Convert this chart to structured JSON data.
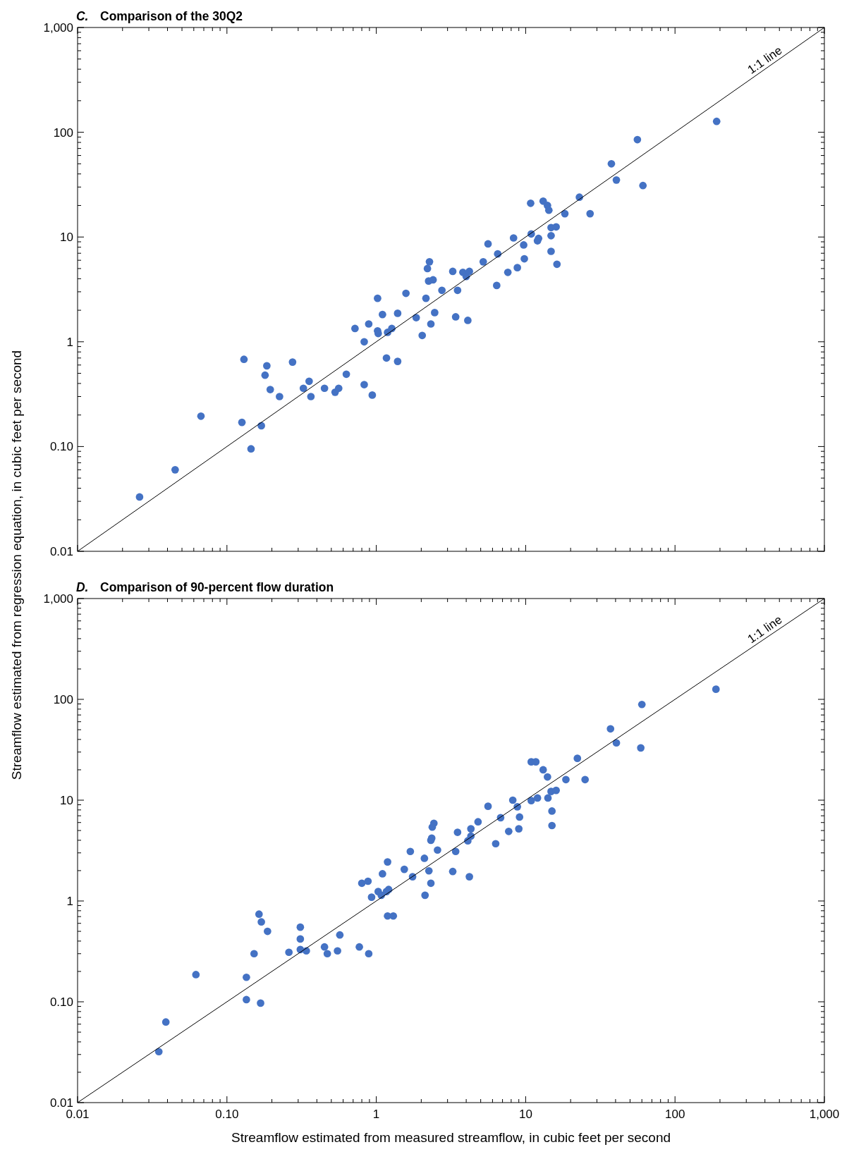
{
  "chart_data": [
    {
      "type": "scatter",
      "title": "C. Comparison of the 30Q2",
      "ylabel": "Streamflow estimated from regression equation, in cubic feet per second",
      "log": "xy",
      "grid": false,
      "tick_labels": "y",
      "xlim": [
        0.01,
        1000
      ],
      "ylim": [
        0.01,
        1000
      ],
      "xticks": [
        0.01,
        0.1,
        1,
        10,
        100,
        1000
      ],
      "yticks": [
        {
          "value": 0.01,
          "label": "0.01"
        },
        {
          "value": 0.1,
          "label": "0.10"
        },
        1,
        10,
        100,
        {
          "value": 1000,
          "label": "1,000"
        }
      ],
      "annotations": [
        "1:1 line"
      ],
      "series": [
        {
          "color": "#4472c4",
          "marker": "circle",
          "x": [
            0.026,
            0.045,
            0.067,
            0.126,
            0.13,
            0.145,
            0.17,
            0.185,
            0.18,
            0.195,
            0.225,
            0.275,
            0.325,
            0.355,
            0.365,
            0.45,
            0.53,
            0.56,
            0.63,
            0.83,
            0.72,
            0.83,
            0.89,
            0.94,
            1.02,
            1.02,
            1.03,
            1.1,
            1.17,
            1.19,
            1.27,
            1.39,
            1.39,
            1.58,
            1.85,
            2.03,
            2.15,
            2.2,
            2.27,
            2.24,
            2.4,
            2.32,
            2.46,
            2.75,
            3.25,
            3.4,
            3.5,
            3.8,
            4.0,
            4.2,
            4.1,
            5.2,
            5.6,
            6.5,
            6.4,
            7.6,
            8.3,
            8.8,
            9.7,
            9.8,
            10.8,
            10.9,
            12.0,
            12.2,
            13.1,
            14.0,
            14.3,
            14.8,
            14.8,
            14.8,
            16,
            16.2,
            18.3,
            22.9,
            27,
            37.5,
            40.5,
            56,
            61,
            190
          ],
          "values": [
            0.033,
            0.06,
            0.195,
            0.17,
            0.68,
            0.095,
            0.158,
            0.59,
            0.48,
            0.35,
            0.3,
            0.64,
            0.36,
            0.42,
            0.3,
            0.36,
            0.33,
            0.36,
            0.49,
            0.39,
            1.34,
            1.0,
            1.48,
            0.31,
            2.6,
            1.27,
            1.2,
            1.82,
            0.7,
            1.23,
            1.34,
            1.87,
            0.65,
            2.9,
            1.7,
            1.15,
            2.6,
            5.0,
            5.8,
            3.8,
            3.9,
            1.48,
            1.9,
            3.1,
            4.7,
            1.73,
            3.1,
            4.6,
            4.2,
            4.7,
            1.6,
            5.8,
            8.6,
            6.9,
            3.45,
            4.6,
            9.8,
            5.1,
            8.4,
            6.2,
            21,
            10.7,
            9.2,
            9.7,
            22,
            20,
            18,
            12.3,
            10.3,
            7.3,
            12.5,
            5.5,
            16.7,
            24,
            16.7,
            50,
            35,
            85,
            31,
            127
          ]
        },
        {
          "type": "line",
          "color": "#000000",
          "x": [
            0.01,
            1000
          ],
          "values": [
            0.01,
            1000
          ]
        }
      ]
    },
    {
      "type": "scatter",
      "title": "D. Comparison of 90-percent flow duration",
      "xlabel": "Streamflow estimated from measured streamflow, in cubic feet per second",
      "log": "xy",
      "grid": false,
      "xlim": [
        0.01,
        1000
      ],
      "ylim": [
        0.01,
        1000
      ],
      "xticks": [
        {
          "value": 0.01,
          "label": "0.01"
        },
        {
          "value": 0.1,
          "label": "0.10"
        },
        1,
        10,
        100,
        {
          "value": 1000,
          "label": "1,000"
        }
      ],
      "yticks": [
        {
          "value": 0.01,
          "label": "0.01"
        },
        {
          "value": 0.1,
          "label": "0.10"
        },
        1,
        10,
        100,
        {
          "value": 1000,
          "label": "1,000"
        }
      ],
      "annotations": [
        "1:1 line"
      ],
      "series": [
        {
          "color": "#4472c4",
          "marker": "circle",
          "x": [
            0.035,
            0.039,
            0.062,
            0.135,
            0.135,
            0.152,
            0.164,
            0.17,
            0.168,
            0.187,
            0.26,
            0.31,
            0.31,
            0.31,
            0.34,
            0.45,
            0.47,
            0.57,
            0.55,
            0.77,
            0.89,
            0.8,
            0.88,
            0.93,
            1.03,
            1.08,
            1.1,
            1.19,
            1.17,
            1.21,
            1.19,
            1.3,
            1.54,
            1.69,
            1.75,
            2.1,
            2.12,
            2.25,
            2.32,
            2.35,
            2.37,
            2.43,
            2.32,
            2.57,
            3.25,
            3.4,
            3.5,
            4.1,
            4.3,
            4.3,
            4.2,
            4.8,
            5.6,
            6.3,
            6.8,
            7.7,
            8.2,
            8.8,
            9.0,
            9.1,
            10.9,
            11.7,
            10.9,
            12,
            13.1,
            14,
            14.1,
            14.8,
            15,
            15,
            16,
            18.6,
            22.2,
            25,
            37,
            40.5,
            60,
            59,
            188
          ],
          "values": [
            0.032,
            0.063,
            0.186,
            0.175,
            0.105,
            0.3,
            0.74,
            0.62,
            0.097,
            0.5,
            0.31,
            0.55,
            0.42,
            0.33,
            0.32,
            0.35,
            0.3,
            0.46,
            0.32,
            0.35,
            0.3,
            1.5,
            1.57,
            1.09,
            1.24,
            1.14,
            1.86,
            2.44,
            1.24,
            1.3,
            0.71,
            0.71,
            2.06,
            3.1,
            1.74,
            2.65,
            1.14,
            1.99,
            1.5,
            4.2,
            5.4,
            5.9,
            4.0,
            3.2,
            1.96,
            3.1,
            4.8,
            3.95,
            5.2,
            4.4,
            1.74,
            6.1,
            8.7,
            3.7,
            6.7,
            4.9,
            10,
            8.6,
            5.2,
            6.8,
            24,
            24,
            9.9,
            10.5,
            20,
            17,
            10.5,
            12.2,
            7.8,
            5.6,
            12.5,
            16,
            26,
            16,
            51,
            37,
            89,
            33,
            126
          ]
        },
        {
          "type": "line",
          "color": "#000000",
          "x": [
            0.01,
            1000
          ],
          "values": [
            0.01,
            1000
          ]
        }
      ]
    }
  ]
}
